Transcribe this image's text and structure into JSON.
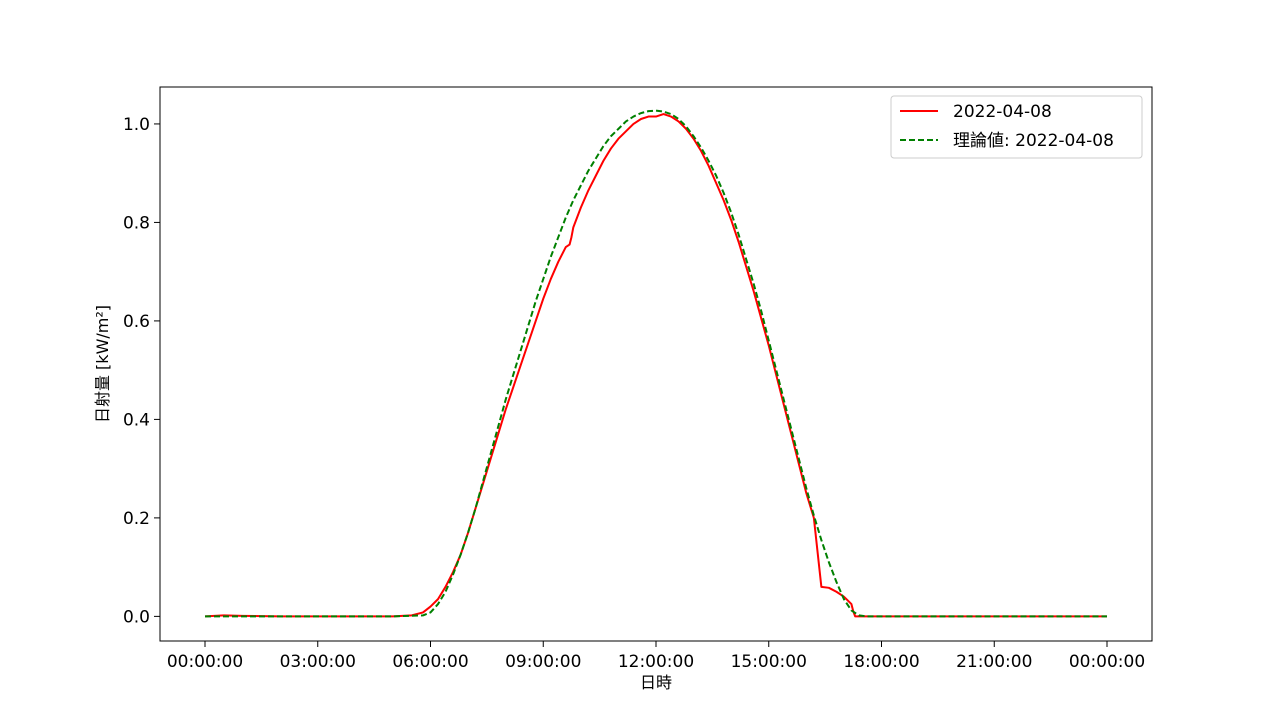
{
  "chart_data": {
    "type": "line",
    "xlabel": "日時",
    "ylabel": "日射量 [kW/m²]",
    "xlim_hours": [
      0,
      24
    ],
    "ylim": [
      -0.05,
      1.075
    ],
    "x_ticks": [
      {
        "hour": 0,
        "label": "00:00:00"
      },
      {
        "hour": 3,
        "label": "03:00:00"
      },
      {
        "hour": 6,
        "label": "06:00:00"
      },
      {
        "hour": 9,
        "label": "09:00:00"
      },
      {
        "hour": 12,
        "label": "12:00:00"
      },
      {
        "hour": 15,
        "label": "15:00:00"
      },
      {
        "hour": 18,
        "label": "18:00:00"
      },
      {
        "hour": 21,
        "label": "21:00:00"
      },
      {
        "hour": 24,
        "label": "00:00:00"
      }
    ],
    "y_ticks": [
      {
        "value": 0.0,
        "label": "0.0"
      },
      {
        "value": 0.2,
        "label": "0.2"
      },
      {
        "value": 0.4,
        "label": "0.4"
      },
      {
        "value": 0.6,
        "label": "0.6"
      },
      {
        "value": 0.8,
        "label": "0.8"
      },
      {
        "value": 1.0,
        "label": "1.0"
      }
    ],
    "grid": false,
    "legend_position": "top-right",
    "series": [
      {
        "name": "2022-04-08",
        "color": "#ff0000",
        "style": "solid",
        "x": [
          0,
          0.5,
          1,
          2,
          3,
          4,
          5,
          5.5,
          5.8,
          6.0,
          6.2,
          6.4,
          6.6,
          6.8,
          7.0,
          7.2,
          7.4,
          7.6,
          7.8,
          8.0,
          8.2,
          8.4,
          8.6,
          8.8,
          9.0,
          9.2,
          9.4,
          9.6,
          9.7,
          9.75,
          9.8,
          10.0,
          10.2,
          10.4,
          10.6,
          10.8,
          11.0,
          11.2,
          11.4,
          11.6,
          11.8,
          12.0,
          12.2,
          12.4,
          12.6,
          12.8,
          13.0,
          13.2,
          13.4,
          13.6,
          13.8,
          14.0,
          14.2,
          14.4,
          14.6,
          14.8,
          15.0,
          15.2,
          15.4,
          15.6,
          15.8,
          16.0,
          16.2,
          16.4,
          16.6,
          16.8,
          17.0,
          17.2,
          17.25,
          17.3,
          17.6,
          17.9,
          18.2,
          18.35,
          18.5,
          19,
          20,
          21,
          22,
          23,
          24
        ],
        "y": [
          0.0,
          0.002,
          0.001,
          0.0,
          0.0,
          0.0,
          0.0,
          0.002,
          0.008,
          0.02,
          0.035,
          0.06,
          0.09,
          0.125,
          0.17,
          0.22,
          0.27,
          0.32,
          0.37,
          0.42,
          0.465,
          0.51,
          0.555,
          0.6,
          0.645,
          0.685,
          0.72,
          0.75,
          0.755,
          0.77,
          0.79,
          0.83,
          0.865,
          0.895,
          0.925,
          0.95,
          0.97,
          0.985,
          1.0,
          1.01,
          1.015,
          1.015,
          1.02,
          1.015,
          1.005,
          0.99,
          0.97,
          0.945,
          0.915,
          0.88,
          0.845,
          0.805,
          0.76,
          0.71,
          0.66,
          0.605,
          0.55,
          0.49,
          0.43,
          0.37,
          0.31,
          0.25,
          0.2,
          0.06,
          0.058,
          0.05,
          0.04,
          0.025,
          0.01,
          0.0,
          0.0,
          0.0,
          0.0,
          0.0,
          0.0,
          0.0,
          0.0,
          0.0,
          0.0,
          0.0,
          0.0
        ]
      },
      {
        "name": "理論値: 2022-04-08",
        "color": "#008000",
        "style": "dashed",
        "x": [
          0,
          1,
          2,
          3,
          4,
          5,
          5.8,
          6.0,
          6.2,
          6.4,
          6.6,
          6.8,
          7.0,
          7.2,
          7.4,
          7.6,
          7.8,
          8.0,
          8.2,
          8.4,
          8.6,
          8.8,
          9.0,
          9.2,
          9.4,
          9.6,
          9.8,
          10.0,
          10.2,
          10.4,
          10.6,
          10.8,
          11.0,
          11.2,
          11.4,
          11.6,
          11.8,
          12.0,
          12.2,
          12.4,
          12.6,
          12.8,
          13.0,
          13.2,
          13.4,
          13.6,
          13.8,
          14.0,
          14.2,
          14.4,
          14.6,
          14.8,
          15.0,
          15.2,
          15.4,
          15.6,
          15.8,
          16.0,
          16.2,
          16.4,
          16.6,
          16.8,
          17.0,
          17.2,
          17.4,
          17.6,
          17.8,
          18.0,
          18.2,
          18.35,
          18.5,
          19,
          20,
          21,
          22,
          23,
          24
        ],
        "y": [
          0.0,
          0.0,
          0.0,
          0.0,
          0.0,
          0.0,
          0.002,
          0.008,
          0.025,
          0.05,
          0.085,
          0.125,
          0.17,
          0.22,
          0.275,
          0.33,
          0.385,
          0.44,
          0.49,
          0.54,
          0.59,
          0.64,
          0.685,
          0.73,
          0.77,
          0.81,
          0.845,
          0.875,
          0.905,
          0.93,
          0.955,
          0.975,
          0.99,
          1.005,
          1.015,
          1.022,
          1.026,
          1.027,
          1.025,
          1.02,
          1.01,
          0.995,
          0.975,
          0.952,
          0.925,
          0.895,
          0.86,
          0.82,
          0.775,
          0.725,
          0.675,
          0.62,
          0.56,
          0.5,
          0.44,
          0.38,
          0.32,
          0.26,
          0.205,
          0.155,
          0.11,
          0.07,
          0.035,
          0.012,
          0.002,
          0.0,
          0.0,
          0.0,
          0.0,
          0.0,
          0.0,
          0.0,
          0.0,
          0.0,
          0.0,
          0.0,
          0.0
        ]
      }
    ]
  }
}
